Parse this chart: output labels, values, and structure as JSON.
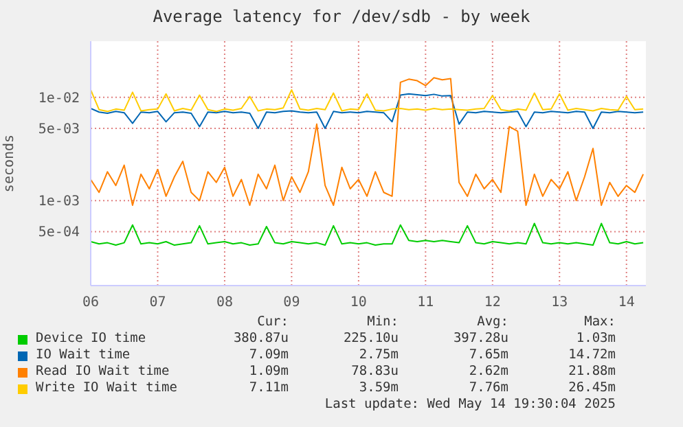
{
  "chart_data": {
    "type": "line",
    "title": "Average latency for /dev/sdb - by week",
    "ylabel": "seconds",
    "log": "y",
    "grid": true,
    "legend": "bottom",
    "marker": "none",
    "line_style": "solid",
    "xlim": [
      6,
      14.29
    ],
    "xticks": [
      {
        "value": 6,
        "label": "06"
      },
      {
        "value": 7,
        "label": "07"
      },
      {
        "value": 8,
        "label": "08"
      },
      {
        "value": 9,
        "label": "09"
      },
      {
        "value": 10,
        "label": "10"
      },
      {
        "value": 11,
        "label": "11"
      },
      {
        "value": 12,
        "label": "12"
      },
      {
        "value": 13,
        "label": "13"
      },
      {
        "value": 14,
        "label": "14"
      }
    ],
    "ylim": [
      0.00015,
      0.035
    ],
    "yticks": [
      {
        "value": 0.0005,
        "label": "5e-04"
      },
      {
        "value": 0.001,
        "label": "1e-03"
      },
      {
        "value": 0.005,
        "label": "5e-03"
      },
      {
        "value": 0.01,
        "label": "1e-02"
      }
    ],
    "x": [
      6,
      6.125,
      6.25,
      6.375,
      6.5,
      6.625,
      6.75,
      6.875,
      7,
      7.125,
      7.25,
      7.375,
      7.5,
      7.625,
      7.75,
      7.875,
      8,
      8.125,
      8.25,
      8.375,
      8.5,
      8.625,
      8.75,
      8.875,
      9,
      9.125,
      9.25,
      9.375,
      9.5,
      9.625,
      9.75,
      9.875,
      10,
      10.125,
      10.25,
      10.375,
      10.5,
      10.625,
      10.75,
      10.875,
      11,
      11.125,
      11.25,
      11.375,
      11.5,
      11.625,
      11.75,
      11.875,
      12,
      12.125,
      12.25,
      12.375,
      12.5,
      12.625,
      12.75,
      12.875,
      13,
      13.125,
      13.25,
      13.375,
      13.5,
      13.625,
      13.75,
      13.875,
      14,
      14.125,
      14.25
    ],
    "series": [
      {
        "name": "Device IO time",
        "color": "#00cc00",
        "values": [
          0.0004,
          0.00038,
          0.00039,
          0.00037,
          0.00039,
          0.00058,
          0.00038,
          0.00039,
          0.00038,
          0.0004,
          0.00037,
          0.00038,
          0.00039,
          0.00057,
          0.00038,
          0.00039,
          0.0004,
          0.00038,
          0.00039,
          0.00037,
          0.00038,
          0.00056,
          0.00039,
          0.00038,
          0.0004,
          0.00039,
          0.00038,
          0.00039,
          0.00037,
          0.00057,
          0.00038,
          0.00039,
          0.00038,
          0.00039,
          0.00037,
          0.00038,
          0.00038,
          0.00058,
          0.00041,
          0.0004,
          0.00041,
          0.0004,
          0.00041,
          0.0004,
          0.00039,
          0.00057,
          0.00039,
          0.00038,
          0.0004,
          0.00039,
          0.00038,
          0.00039,
          0.00038,
          0.0006,
          0.00039,
          0.00038,
          0.00039,
          0.00038,
          0.00039,
          0.00038,
          0.00037,
          0.0006,
          0.00039,
          0.00038,
          0.0004,
          0.00038,
          0.00039
        ]
      },
      {
        "name": "IO Wait time",
        "color": "#0066b3",
        "values": [
          0.0078,
          0.0072,
          0.007,
          0.0073,
          0.0071,
          0.0056,
          0.0072,
          0.0071,
          0.0073,
          0.0058,
          0.0071,
          0.0072,
          0.007,
          0.0052,
          0.0072,
          0.0071,
          0.0073,
          0.0071,
          0.0072,
          0.007,
          0.005,
          0.0072,
          0.0071,
          0.0073,
          0.0074,
          0.0072,
          0.0071,
          0.0072,
          0.005,
          0.0073,
          0.0071,
          0.0072,
          0.0071,
          0.0073,
          0.0072,
          0.0071,
          0.0058,
          0.0105,
          0.0108,
          0.0106,
          0.0104,
          0.0107,
          0.0103,
          0.0104,
          0.0055,
          0.0072,
          0.0071,
          0.0073,
          0.0072,
          0.0071,
          0.0072,
          0.0073,
          0.0052,
          0.0072,
          0.0071,
          0.0073,
          0.0072,
          0.0071,
          0.0073,
          0.0072,
          0.005,
          0.0072,
          0.0071,
          0.0073,
          0.0072,
          0.0071,
          0.0072
        ]
      },
      {
        "name": "Read IO Wait time",
        "color": "#ff8000",
        "values": [
          0.0016,
          0.0012,
          0.0019,
          0.0014,
          0.0022,
          0.0009,
          0.0018,
          0.0013,
          0.002,
          0.0011,
          0.0017,
          0.0024,
          0.0012,
          0.001,
          0.0019,
          0.0015,
          0.0021,
          0.0011,
          0.0016,
          0.0009,
          0.0018,
          0.0013,
          0.0022,
          0.001,
          0.0017,
          0.0012,
          0.0019,
          0.0055,
          0.0014,
          0.0009,
          0.0021,
          0.0013,
          0.0016,
          0.0011,
          0.0019,
          0.0012,
          0.0011,
          0.014,
          0.015,
          0.0145,
          0.013,
          0.0155,
          0.0148,
          0.0152,
          0.0015,
          0.0011,
          0.0018,
          0.0013,
          0.0016,
          0.0012,
          0.0052,
          0.0047,
          0.0009,
          0.0018,
          0.0011,
          0.0016,
          0.0013,
          0.0019,
          0.001,
          0.0017,
          0.0032,
          0.0009,
          0.0015,
          0.0011,
          0.0014,
          0.0012,
          0.0018
        ]
      },
      {
        "name": "Write IO Wait time",
        "color": "#ffcc00",
        "values": [
          0.0118,
          0.0076,
          0.0073,
          0.0077,
          0.0075,
          0.0112,
          0.0074,
          0.0076,
          0.0077,
          0.0108,
          0.0074,
          0.0078,
          0.0075,
          0.0105,
          0.0076,
          0.0073,
          0.0077,
          0.0075,
          0.0078,
          0.0102,
          0.0074,
          0.0077,
          0.0076,
          0.0079,
          0.0118,
          0.0077,
          0.0075,
          0.0078,
          0.0076,
          0.011,
          0.0074,
          0.0077,
          0.0076,
          0.0108,
          0.0075,
          0.0074,
          0.0077,
          0.0078,
          0.0076,
          0.0077,
          0.0075,
          0.0078,
          0.0076,
          0.0077,
          0.0076,
          0.0075,
          0.0077,
          0.0078,
          0.0104,
          0.0076,
          0.0074,
          0.0077,
          0.0075,
          0.011,
          0.0076,
          0.0077,
          0.0108,
          0.0075,
          0.0078,
          0.0076,
          0.0074,
          0.0078,
          0.0076,
          0.0075,
          0.0102,
          0.0076,
          0.0077
        ]
      }
    ],
    "annotations": [
      "Cur:",
      "Min:",
      "Avg:",
      "Max:",
      "380.87u",
      "225.10u",
      "397.28u",
      "1.03m",
      "7.09m",
      "2.75m",
      "7.65m",
      "14.72m",
      "1.09m",
      "78.83u",
      "2.62m",
      "21.88m",
      "7.11m",
      "3.59m",
      "7.76m",
      "26.45m",
      "Last update: Wed May 14 19:30:04 2025"
    ]
  }
}
